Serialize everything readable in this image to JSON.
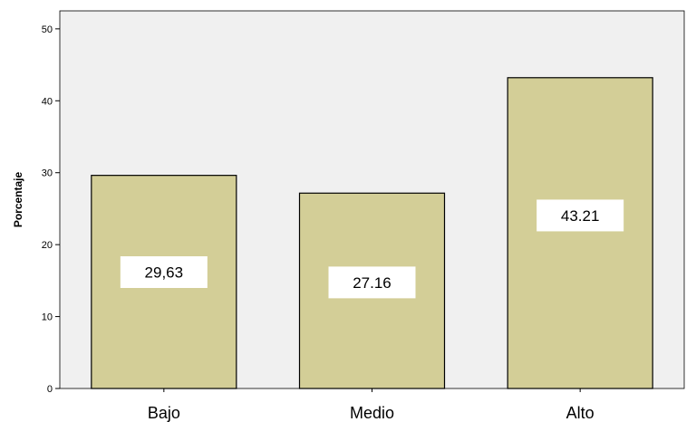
{
  "chart_data": {
    "type": "bar",
    "categories": [
      "Bajo",
      "Medio",
      "Alto"
    ],
    "values": [
      29.63,
      27.16,
      43.21
    ],
    "data_labels": [
      "29,63",
      "27.16",
      "43.21"
    ],
    "title": "",
    "xlabel": "",
    "ylabel": "Porcentaje",
    "ylim": [
      0,
      52.5
    ],
    "yticks": [
      0,
      10,
      20,
      30,
      40,
      50
    ],
    "grid": false,
    "legend": "none",
    "colors": {
      "plot_background": "#f0f0f0",
      "bar_fill": "#d3ce97",
      "bar_stroke": "#000000",
      "label_box": "#ffffff"
    }
  }
}
